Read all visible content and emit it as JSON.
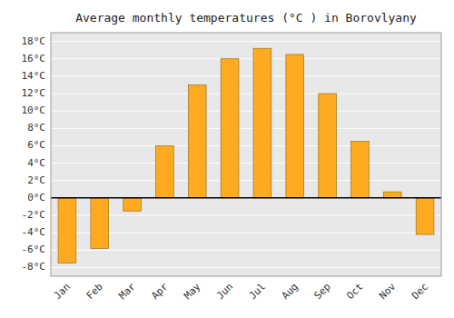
{
  "chart_data": {
    "type": "bar",
    "title": "Average monthly temperatures (°C ) in Borovlyany",
    "categories": [
      "Jan",
      "Feb",
      "Mar",
      "Apr",
      "May",
      "Jun",
      "Jul",
      "Aug",
      "Sep",
      "Oct",
      "Nov",
      "Dec"
    ],
    "values": [
      -7.5,
      -5.8,
      -1.5,
      6.0,
      13.0,
      16.0,
      17.2,
      16.5,
      12.0,
      6.5,
      0.7,
      -4.2
    ],
    "color": "#FFAA20",
    "ylim": [
      -9,
      19
    ],
    "yticks": [
      {
        "value": -8,
        "label": "-8°C"
      },
      {
        "value": -6,
        "label": "-6°C"
      },
      {
        "value": -4,
        "label": "-4°C"
      },
      {
        "value": -2,
        "label": "-2°C"
      },
      {
        "value": 0,
        "label": "0°C"
      },
      {
        "value": 2,
        "label": "2°C"
      },
      {
        "value": 4,
        "label": "4°C"
      },
      {
        "value": 6,
        "label": "6°C"
      },
      {
        "value": 8,
        "label": "8°C"
      },
      {
        "value": 10,
        "label": "10°C"
      },
      {
        "value": 12,
        "label": "12°C"
      },
      {
        "value": 14,
        "label": "14°C"
      },
      {
        "value": 16,
        "label": "16°C"
      },
      {
        "value": 18,
        "label": "18°C"
      }
    ],
    "grid": true
  }
}
